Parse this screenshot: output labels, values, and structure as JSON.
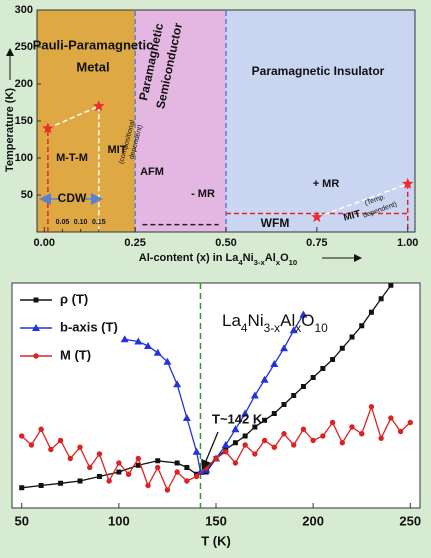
{
  "chart_data": [
    {
      "type": "phase",
      "xlabel": [
        "Al-content (x) in La",
        "4",
        "Ni",
        "3-x",
        "Al",
        "x",
        "O",
        "10"
      ],
      "ylabel": "Temperature (K)",
      "xlim": [
        -0.02,
        1.02
      ],
      "ylim": [
        0,
        300
      ],
      "xticks": [
        {
          "value": 0,
          "label": "0.00"
        },
        {
          "value": 0.05,
          "label": "0.05"
        },
        {
          "value": 0.1,
          "label": "0.10"
        },
        {
          "value": 0.15,
          "label": "0.15"
        },
        {
          "value": 0.25,
          "label": "0.25"
        },
        {
          "value": 0.5,
          "label": "0.50"
        },
        {
          "value": 0.75,
          "label": "0.75"
        },
        {
          "value": 1,
          "label": "1.00"
        }
      ],
      "yticks": [
        50,
        100,
        150,
        200,
        250,
        300
      ],
      "regions": [
        {
          "x": [
            -0.02,
            0.25
          ],
          "color": "#dea943"
        },
        {
          "x": [
            0.25,
            0.5
          ],
          "color": "#e4b7e2"
        },
        {
          "x": [
            0.5,
            1.02
          ],
          "color": "#c9d5f1"
        }
      ],
      "boundaries": [
        {
          "x": [
            0.01,
            0.01
          ],
          "y": [
            0,
            140
          ],
          "color": "#e3262b"
        },
        {
          "x": [
            0.01,
            0.15
          ],
          "y": [
            140,
            170
          ],
          "color": "#ffffff"
        },
        {
          "x": [
            0.15,
            0.15
          ],
          "y": [
            170,
            0
          ],
          "color": "#ffffff"
        },
        {
          "x": [
            0.25,
            0.25
          ],
          "y": [
            0,
            300
          ],
          "color": "#5b7fd1"
        },
        {
          "x": [
            0.5,
            0.5
          ],
          "y": [
            0,
            300
          ],
          "color": "#5b7fd1"
        },
        {
          "x": [
            0.27,
            0.48
          ],
          "y": [
            10,
            10
          ],
          "color": "#222222"
        },
        {
          "x": [
            0.5,
            1.0
          ],
          "y": [
            25,
            25
          ],
          "color": "#e3262b"
        },
        {
          "x": [
            0.75,
            1.0
          ],
          "y": [
            20,
            65
          ],
          "color": "#ffffff"
        },
        {
          "x": [
            1.0,
            1.0
          ],
          "y": [
            65,
            0
          ],
          "color": "#e3262b"
        }
      ],
      "points": {
        "color": "#ee2a2a",
        "x": [
          0.01,
          0.15,
          0.75,
          1.0
        ],
        "y": [
          140,
          170,
          20,
          65
        ]
      },
      "annotations": [
        "Pauli-Paramagnetic",
        "Metal",
        "Paramagnetic",
        "Semiconductor",
        "Paramagnetic Insulator",
        "M-T-M",
        "MIT",
        "(compositional",
        "dependent)",
        "CDW",
        "AFM",
        "- MR",
        "+ MR",
        "WFM",
        "MIT",
        "(Temp.",
        "dependent)"
      ]
    },
    {
      "type": "line",
      "title": [
        "La",
        "4",
        "Ni",
        "3-x",
        "Al",
        "x",
        "O",
        "10"
      ],
      "xlabel": "T (K)",
      "xlim": [
        45,
        255
      ],
      "ylim": [
        0,
        100
      ],
      "xticks": [
        50,
        100,
        150,
        200,
        250
      ],
      "vline": {
        "x": 142,
        "color": "#2a9a2a",
        "label": "T~142 K"
      },
      "series": [
        {
          "name": "ρ (T)",
          "color": "#111111",
          "marker": "square",
          "x": [
            50,
            60,
            70,
            80,
            90,
            100,
            110,
            120,
            130,
            135,
            140,
            145,
            150,
            155,
            160,
            165,
            170,
            175,
            180,
            185,
            190,
            195,
            200,
            205,
            210,
            215,
            220,
            225,
            230,
            235,
            240
          ],
          "values": [
            9,
            10,
            11,
            12,
            14,
            16,
            19,
            21,
            20,
            18,
            15,
            16,
            22,
            26,
            29,
            32,
            36,
            39,
            42,
            46,
            50,
            54,
            58,
            62,
            66,
            71,
            76,
            81,
            87,
            93,
            99
          ]
        },
        {
          "name": "b-axis (T)",
          "color": "#2233dd",
          "marker": "triangle",
          "x": [
            103,
            110,
            115,
            120,
            125,
            130,
            135,
            140,
            142,
            145,
            150,
            155,
            160,
            165,
            170,
            175,
            180,
            185,
            190,
            195
          ],
          "values": [
            75,
            74,
            72,
            69,
            65,
            55,
            40,
            25,
            16,
            17,
            22,
            28,
            35,
            42,
            50,
            57,
            64,
            71,
            79,
            86
          ]
        },
        {
          "name": "M (T)",
          "color": "#dd2222",
          "marker": "circle",
          "x": [
            50,
            55,
            60,
            65,
            70,
            75,
            80,
            85,
            90,
            95,
            100,
            105,
            110,
            115,
            120,
            125,
            130,
            135,
            140,
            145,
            150,
            155,
            160,
            165,
            170,
            175,
            180,
            185,
            190,
            195,
            200,
            205,
            210,
            215,
            220,
            225,
            230,
            235,
            240,
            245,
            250
          ],
          "values": [
            32,
            28,
            35,
            26,
            30,
            22,
            27,
            18,
            24,
            12,
            20,
            15,
            22,
            10,
            18,
            8,
            16,
            12,
            14,
            18,
            22,
            25,
            20,
            28,
            24,
            30,
            27,
            33,
            28,
            35,
            30,
            32,
            38,
            29,
            36,
            33,
            45,
            31,
            40,
            34,
            38
          ]
        }
      ]
    }
  ]
}
